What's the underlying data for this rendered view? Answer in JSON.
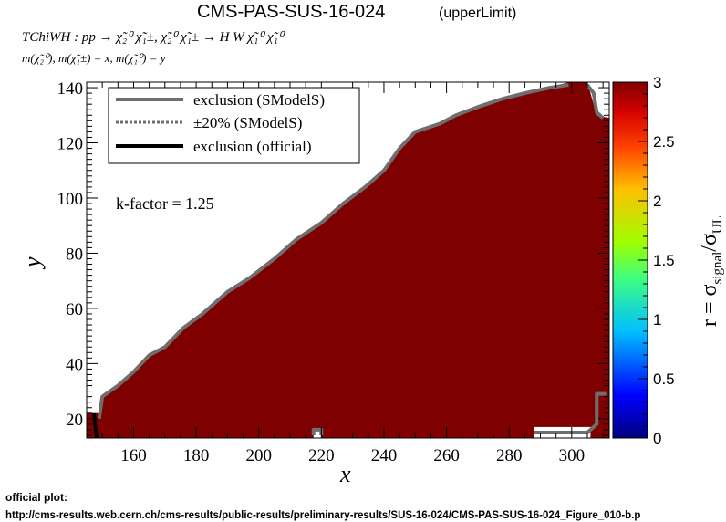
{
  "header": {
    "title": "CMS-PAS-SUS-16-024",
    "title_suffix": "(upperLimit)",
    "process": "TChiWH : pp → χ̃₂⁰ χ̃₁±, χ̃₂⁰ χ̃₁± → H W χ̃₁⁰ χ̃₁⁰",
    "mass_relation": "m(χ̃₂⁰), m(χ̃₁±) = x, m(χ̃₁⁰) = y"
  },
  "footer": {
    "label": "official plot:",
    "url": "http://cms-results.web.cern.ch/cms-results/public-results/preliminary-results/SUS-16-024/CMS-PAS-SUS-16-024_Figure_010-b.p"
  },
  "colors": {
    "fill": "#7f0000",
    "smodels_line": "#6e6e6e",
    "official_line": "#000000",
    "hole": "#ffffff"
  },
  "chart_data": {
    "type": "heatmap",
    "xlabel": "x",
    "ylabel": "y",
    "xlim": [
      145,
      312
    ],
    "ylim": [
      13,
      142
    ],
    "x_ticks": [
      160,
      180,
      200,
      220,
      240,
      260,
      280,
      300
    ],
    "y_ticks": [
      20,
      40,
      60,
      80,
      100,
      120,
      140
    ],
    "annotation": "k-factor = 1.25",
    "legend": {
      "placement": "top-left",
      "entries": [
        {
          "label": "exclusion (SModelS)",
          "style": "solid-gray"
        },
        {
          "label": "±20% (SModelS)",
          "style": "dotted-gray"
        },
        {
          "label": "exclusion (official)",
          "style": "solid-black"
        }
      ]
    },
    "colorbar": {
      "label": "r = σsignal/σUL",
      "min": 0,
      "max": 3,
      "ticks": [
        "0",
        "0.5",
        "1",
        "1.5",
        "2",
        "2.5",
        "3"
      ]
    },
    "r_value_in_region": 3,
    "filled_region": [
      [
        145,
        13
      ],
      [
        145,
        22
      ],
      [
        149,
        22
      ],
      [
        150,
        28
      ],
      [
        155,
        32
      ],
      [
        160,
        37
      ],
      [
        165,
        43
      ],
      [
        170,
        46
      ],
      [
        176,
        53
      ],
      [
        182,
        58
      ],
      [
        190,
        66
      ],
      [
        197,
        71
      ],
      [
        205,
        78
      ],
      [
        212,
        85
      ],
      [
        220,
        91
      ],
      [
        227,
        98
      ],
      [
        234,
        104
      ],
      [
        240,
        110
      ],
      [
        245,
        118
      ],
      [
        250,
        124
      ],
      [
        258,
        127
      ],
      [
        263,
        130
      ],
      [
        270,
        133
      ],
      [
        278,
        136
      ],
      [
        285,
        138
      ],
      [
        293,
        140
      ],
      [
        299,
        142
      ],
      [
        305,
        142
      ],
      [
        308,
        130
      ],
      [
        312,
        129
      ],
      [
        312,
        13
      ]
    ],
    "holes": [
      {
        "x": [
          217.5,
          220
        ],
        "y": [
          13,
          16
        ]
      },
      {
        "x": [
          288,
          306
        ],
        "y": [
          13,
          17
        ]
      }
    ],
    "smodels_exclusion": [
      [
        [
          149,
          20
        ],
        [
          150,
          28
        ],
        [
          155,
          32
        ],
        [
          160,
          37
        ],
        [
          165,
          43
        ],
        [
          170,
          46
        ],
        [
          176,
          53
        ],
        [
          182,
          58
        ],
        [
          190,
          66
        ],
        [
          197,
          71
        ],
        [
          205,
          78
        ],
        [
          212,
          85
        ],
        [
          220,
          91
        ],
        [
          227,
          98
        ],
        [
          234,
          104
        ],
        [
          240,
          110
        ],
        [
          245,
          118
        ],
        [
          250,
          124
        ],
        [
          258,
          127
        ],
        [
          263,
          130
        ],
        [
          270,
          133
        ],
        [
          278,
          136
        ],
        [
          285,
          138
        ],
        [
          293,
          140
        ],
        [
          299,
          141
        ]
      ],
      [
        [
          305,
          141
        ],
        [
          307,
          138
        ],
        [
          308,
          131
        ],
        [
          310,
          129
        ]
      ],
      [
        [
          288,
          15
        ],
        [
          305,
          15
        ],
        [
          308,
          18
        ],
        [
          308,
          29
        ],
        [
          311,
          29
        ]
      ],
      [
        [
          217.5,
          14
        ],
        [
          217.5,
          16
        ],
        [
          220,
          16
        ],
        [
          220,
          14
        ]
      ]
    ],
    "official_exclusion": [
      [
        [
          147.3,
          22
        ],
        [
          148.2,
          13
        ]
      ]
    ]
  }
}
